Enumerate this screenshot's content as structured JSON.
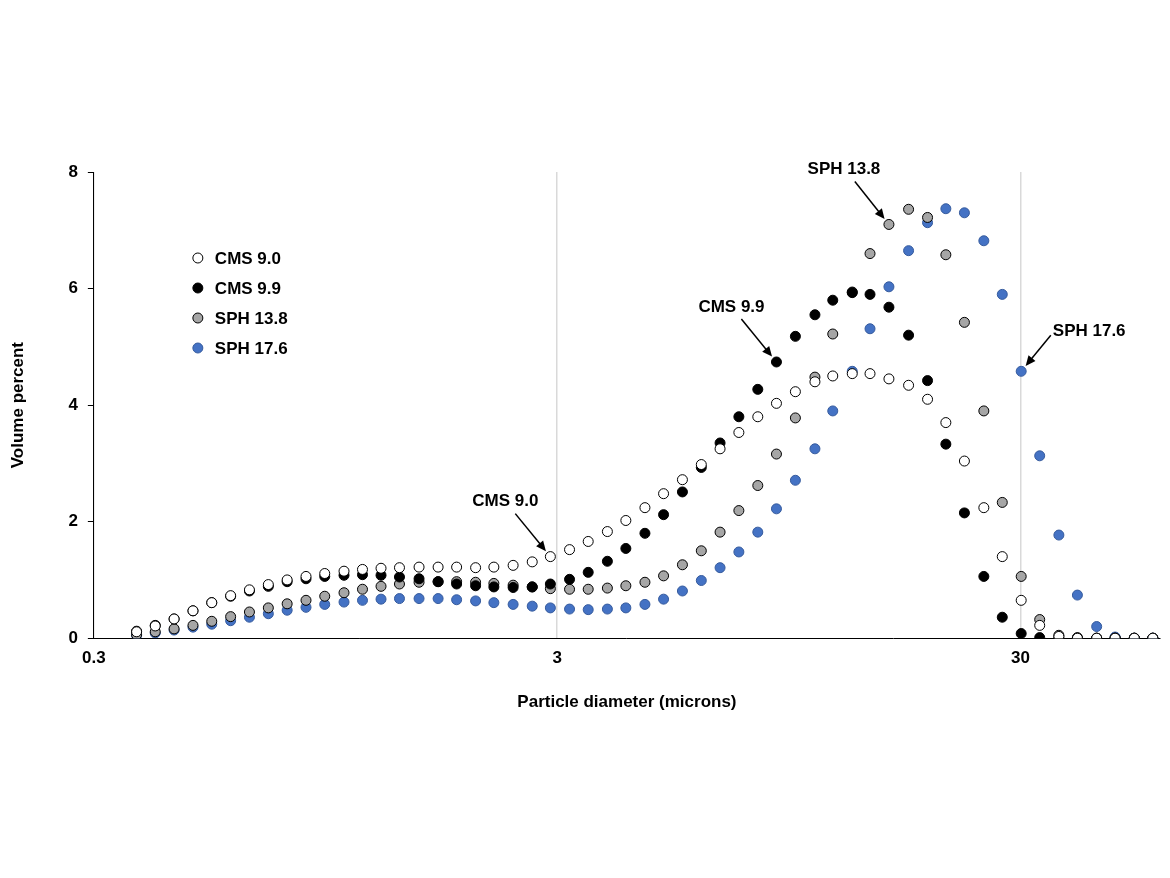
{
  "chart_data": {
    "type": "scatter",
    "x_label": "Particle diameter (microns)",
    "y_label": "Volume percent",
    "log": "x",
    "grid": "x",
    "legend": "upper left",
    "marker": "circle",
    "xlim": [
      0.3,
      60
    ],
    "ylim": [
      0,
      8
    ],
    "xticks": [
      0.3,
      3,
      30
    ],
    "yticks": [
      0,
      2,
      4,
      6,
      8
    ],
    "x": [
      0.371,
      0.407,
      0.447,
      0.491,
      0.539,
      0.592,
      0.65,
      0.714,
      0.784,
      0.861,
      0.945,
      1.04,
      1.14,
      1.25,
      1.37,
      1.51,
      1.66,
      1.82,
      2.0,
      2.19,
      2.41,
      2.65,
      2.9,
      3.19,
      3.5,
      3.85,
      4.22,
      4.64,
      5.09,
      5.59,
      6.14,
      6.74,
      7.4,
      8.13,
      8.92,
      9.8,
      10.8,
      11.8,
      13.0,
      14.2,
      15.6,
      17.2,
      18.9,
      20.7,
      22.7,
      25.0,
      27.4,
      30.1,
      33.0,
      36.3,
      39.8,
      43.8,
      48.0,
      52.8,
      57.9
    ],
    "series": [
      {
        "name": "CMS 9.0",
        "color": "#ffffff",
        "marker": "circle",
        "values": [
          0.11,
          0.21,
          0.33,
          0.47,
          0.61,
          0.73,
          0.83,
          0.92,
          1.0,
          1.06,
          1.11,
          1.15,
          1.18,
          1.2,
          1.21,
          1.22,
          1.22,
          1.22,
          1.21,
          1.22,
          1.25,
          1.31,
          1.4,
          1.52,
          1.66,
          1.83,
          2.02,
          2.24,
          2.48,
          2.72,
          2.98,
          3.25,
          3.53,
          3.8,
          4.03,
          4.23,
          4.4,
          4.5,
          4.54,
          4.54,
          4.45,
          4.34,
          4.1,
          3.7,
          3.04,
          2.24,
          1.4,
          0.65,
          0.22,
          0.03,
          0,
          0,
          0,
          0,
          0
        ]
      },
      {
        "name": "CMS 9.9",
        "color": "#000000",
        "marker": "circle",
        "values": [
          0.12,
          0.22,
          0.33,
          0.47,
          0.61,
          0.72,
          0.81,
          0.89,
          0.97,
          1.02,
          1.06,
          1.08,
          1.09,
          1.08,
          1.05,
          1.02,
          0.97,
          0.93,
          0.9,
          0.88,
          0.87,
          0.88,
          0.93,
          1.01,
          1.13,
          1.32,
          1.54,
          1.8,
          2.12,
          2.51,
          2.93,
          3.35,
          3.8,
          4.27,
          4.74,
          5.18,
          5.55,
          5.8,
          5.93,
          5.9,
          5.68,
          5.2,
          4.42,
          3.33,
          2.15,
          1.06,
          0.36,
          0.08,
          0.01,
          0,
          0,
          0,
          0,
          0,
          0
        ]
      },
      {
        "name": "SPH 13.8",
        "color": "#a6a6a6",
        "marker": "circle",
        "values": [
          0.06,
          0.11,
          0.16,
          0.22,
          0.29,
          0.37,
          0.45,
          0.52,
          0.59,
          0.65,
          0.72,
          0.78,
          0.84,
          0.89,
          0.93,
          0.96,
          0.97,
          0.97,
          0.96,
          0.94,
          0.91,
          0.88,
          0.85,
          0.84,
          0.84,
          0.86,
          0.9,
          0.96,
          1.07,
          1.26,
          1.5,
          1.82,
          2.19,
          2.62,
          3.16,
          3.78,
          4.48,
          5.22,
          5.94,
          6.6,
          7.1,
          7.36,
          7.22,
          6.58,
          5.42,
          3.9,
          2.33,
          1.06,
          0.32,
          0.05,
          0.01,
          0,
          0,
          0,
          0
        ]
      },
      {
        "name": "SPH 17.6",
        "color": "#4472c4",
        "marker": "circle",
        "values": [
          0.05,
          0.09,
          0.14,
          0.19,
          0.24,
          0.3,
          0.36,
          0.42,
          0.48,
          0.53,
          0.58,
          0.62,
          0.65,
          0.67,
          0.68,
          0.68,
          0.68,
          0.66,
          0.64,
          0.61,
          0.58,
          0.55,
          0.52,
          0.5,
          0.49,
          0.5,
          0.52,
          0.58,
          0.67,
          0.81,
          0.99,
          1.21,
          1.48,
          1.82,
          2.22,
          2.71,
          3.25,
          3.9,
          4.58,
          5.31,
          6.03,
          6.65,
          7.13,
          7.37,
          7.3,
          6.82,
          5.9,
          4.58,
          3.13,
          1.77,
          0.74,
          0.2,
          0.02,
          0,
          0
        ]
      }
    ],
    "annotations": [
      {
        "text": "CMS 9.0",
        "x": 2.9,
        "y": 1.4
      },
      {
        "text": "CMS 9.9",
        "x": 8.92,
        "y": 4.74
      },
      {
        "text": "SPH 13.8",
        "x": 15.6,
        "y": 7.1
      },
      {
        "text": "SPH 17.6",
        "x": 30.1,
        "y": 4.58
      }
    ]
  }
}
